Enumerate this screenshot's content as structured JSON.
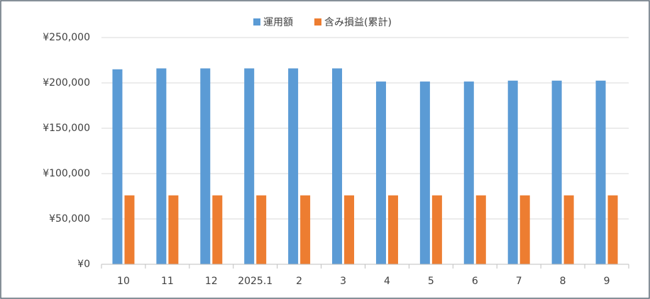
{
  "chart_data": {
    "type": "bar",
    "categories": [
      "10",
      "11",
      "12",
      "2025.1",
      "2",
      "3",
      "4",
      "5",
      "6",
      "7",
      "8",
      "9"
    ],
    "series": [
      {
        "name": "運用額",
        "color": "#5b9bd5",
        "values": [
          215000,
          216000,
          216000,
          216000,
          216000,
          216000,
          201500,
          201500,
          201500,
          202500,
          202500,
          202500
        ]
      },
      {
        "name": "含み損益(累計)",
        "color": "#ed7d31",
        "values": [
          76000,
          76000,
          76000,
          76000,
          76000,
          76000,
          76000,
          76000,
          76000,
          76000,
          76000,
          76000
        ]
      }
    ],
    "ylim": [
      0,
      250000
    ],
    "yticks": [
      {
        "value": 0,
        "label": "¥0"
      },
      {
        "value": 50000,
        "label": "¥50,000"
      },
      {
        "value": 100000,
        "label": "¥100,000"
      },
      {
        "value": 150000,
        "label": "¥150,000"
      },
      {
        "value": 200000,
        "label": "¥200,000"
      },
      {
        "value": 250000,
        "label": "¥250,000"
      }
    ],
    "grid": true,
    "legend": "top"
  }
}
